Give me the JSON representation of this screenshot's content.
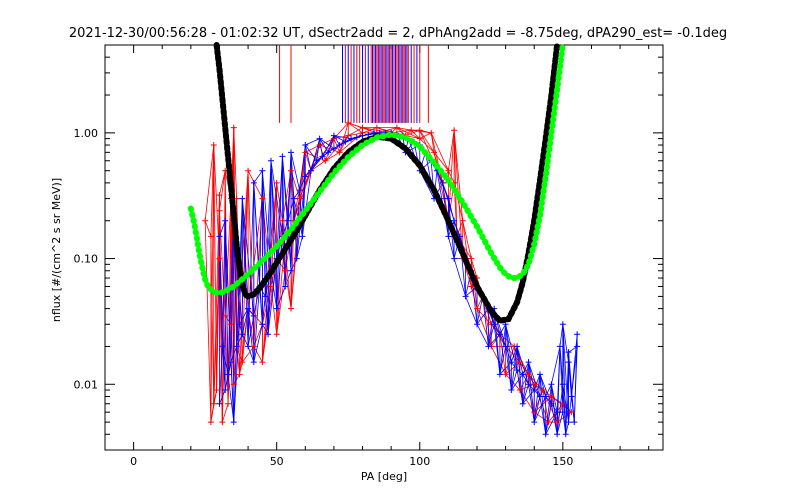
{
  "chart_data": {
    "type": "scatter",
    "title": "2021-12-30/00:56:28 - 01:02:32 UT, dSectr2add = 2, dPhAng2add = -8.75deg, dPA290_est=  -0.1deg",
    "xlabel": "PA [deg]",
    "ylabel": "nflux [#/(cm^2 s sr MeV)]",
    "xlim": [
      -10,
      185
    ],
    "ylim": [
      0.003,
      5.0
    ],
    "yscale": "log",
    "xticks": [
      0,
      50,
      100,
      150
    ],
    "yticks": [
      {
        "value": 0.01,
        "label": "0.01"
      },
      {
        "value": 0.1,
        "label": "0.10"
      },
      {
        "value": 1.0,
        "label": "1.00"
      }
    ],
    "grid": false,
    "colors": {
      "red": "#ff0000",
      "blue": "#0000ff",
      "black": "#000000",
      "green": "#00ff00"
    },
    "series": [
      {
        "color": "black",
        "style": "thick dashed",
        "x": [
          29,
          30,
          31,
          32,
          33,
          34,
          35,
          36,
          37,
          38,
          39,
          40,
          42,
          44,
          46,
          48,
          50,
          55,
          60,
          65,
          70,
          75,
          80,
          85,
          90,
          95,
          100,
          105,
          110,
          115,
          120,
          125,
          128,
          131,
          134,
          136,
          138,
          140,
          142,
          144,
          146,
          148
        ],
        "y": [
          5.0,
          3.2,
          1.9,
          1.1,
          0.65,
          0.38,
          0.22,
          0.13,
          0.085,
          0.062,
          0.052,
          0.05,
          0.052,
          0.058,
          0.067,
          0.078,
          0.093,
          0.14,
          0.22,
          0.35,
          0.52,
          0.7,
          0.85,
          0.93,
          0.9,
          0.75,
          0.55,
          0.35,
          0.2,
          0.11,
          0.06,
          0.038,
          0.032,
          0.033,
          0.045,
          0.065,
          0.11,
          0.2,
          0.42,
          0.9,
          2.0,
          5.0
        ]
      },
      {
        "color": "green",
        "style": "thick dotted",
        "x": [
          20,
          21,
          22,
          23,
          24,
          25,
          26,
          28,
          30,
          32,
          35,
          40,
          45,
          50,
          55,
          60,
          65,
          70,
          75,
          80,
          85,
          90,
          95,
          100,
          105,
          110,
          115,
          120,
          125,
          128,
          130,
          132,
          134,
          136,
          138,
          140,
          142,
          144,
          146,
          148,
          150
        ],
        "y": [
          0.25,
          0.2,
          0.15,
          0.11,
          0.085,
          0.068,
          0.06,
          0.054,
          0.053,
          0.055,
          0.06,
          0.075,
          0.096,
          0.125,
          0.17,
          0.24,
          0.34,
          0.48,
          0.64,
          0.8,
          0.92,
          0.97,
          0.92,
          0.78,
          0.58,
          0.42,
          0.28,
          0.18,
          0.11,
          0.085,
          0.075,
          0.07,
          0.07,
          0.075,
          0.09,
          0.13,
          0.22,
          0.45,
          1.0,
          2.2,
          5.0
        ]
      }
    ],
    "vertical_markers": {
      "red_x": [
        51,
        55,
        74,
        76,
        78,
        79,
        81,
        83,
        84,
        85,
        86,
        87,
        88,
        89,
        90,
        91,
        92,
        93,
        94,
        95,
        96,
        98,
        100,
        103
      ],
      "blue_x": [
        73,
        75,
        77,
        80,
        82,
        83.5,
        84.5,
        85.5,
        86.5,
        87.5,
        88.5,
        89.5,
        90.5,
        91.5,
        92.5,
        93.5,
        94.5,
        95.5,
        97,
        99
      ],
      "y_range": [
        1.2,
        5.0
      ]
    },
    "crosses": {
      "red": [
        [
          30,
          0.1
        ],
        [
          33,
          0.007
        ],
        [
          27,
          0.15
        ],
        [
          34,
          0.3
        ],
        [
          36,
          0.3
        ],
        [
          30,
          0.32
        ],
        [
          35,
          1.1
        ],
        [
          32,
          0.5
        ],
        [
          28,
          0.8
        ],
        [
          30,
          0.24
        ],
        [
          32,
          0.035
        ],
        [
          31,
          0.005
        ],
        [
          29,
          0.009
        ],
        [
          28,
          0.007
        ],
        [
          27,
          0.005
        ],
        [
          25,
          0.2
        ],
        [
          40,
          0.5
        ],
        [
          45,
          0.3
        ],
        [
          50,
          0.4
        ],
        [
          52,
          0.2
        ],
        [
          55,
          0.5
        ],
        [
          60,
          0.7
        ],
        [
          65,
          0.8
        ],
        [
          70,
          0.9
        ],
        [
          75,
          0.95
        ],
        [
          80,
          1.0
        ],
        [
          85,
          1.0
        ],
        [
          90,
          1.0
        ],
        [
          95,
          0.95
        ],
        [
          100,
          0.9
        ],
        [
          105,
          0.7
        ],
        [
          110,
          0.5
        ],
        [
          112,
          0.4
        ],
        [
          115,
          0.2
        ],
        [
          118,
          0.1
        ],
        [
          120,
          0.07
        ],
        [
          122,
          0.05
        ],
        [
          125,
          0.03
        ],
        [
          128,
          0.025
        ],
        [
          130,
          0.02
        ],
        [
          133,
          0.02
        ],
        [
          135,
          0.015
        ],
        [
          138,
          0.012
        ],
        [
          140,
          0.01
        ],
        [
          143,
          0.009
        ],
        [
          146,
          0.008
        ],
        [
          150,
          0.007
        ],
        [
          153,
          0.006
        ],
        [
          148,
          0.005
        ],
        [
          35,
          0.01
        ],
        [
          37,
          0.012
        ],
        [
          38,
          0.015
        ],
        [
          42,
          0.02
        ],
        [
          45,
          0.03
        ],
        [
          48,
          0.06
        ],
        [
          50,
          0.1
        ],
        [
          53,
          0.08
        ],
        [
          56,
          0.2
        ],
        [
          58,
          0.3
        ],
        [
          62,
          0.5
        ],
        [
          67,
          0.6
        ],
        [
          72,
          0.7
        ],
        [
          40,
          0.04
        ],
        [
          36,
          0.02
        ],
        [
          34,
          0.03
        ],
        [
          45,
          0.015
        ],
        [
          50,
          0.025
        ],
        [
          55,
          0.04
        ],
        [
          115,
          0.1
        ],
        [
          118,
          0.06
        ],
        [
          120,
          0.04
        ],
        [
          125,
          0.02
        ],
        [
          130,
          0.012
        ],
        [
          135,
          0.009
        ],
        [
          140,
          0.006
        ],
        [
          145,
          0.005
        ],
        [
          110,
          0.2
        ],
        [
          113,
          0.15
        ],
        [
          108,
          0.4
        ],
        [
          75,
          1.2
        ],
        [
          80,
          1.1
        ],
        [
          85,
          1.1
        ],
        [
          92,
          1.1
        ],
        [
          97,
          1.05
        ],
        [
          100,
          1.05
        ],
        [
          112,
          1.05
        ],
        [
          104,
          1.0
        ]
      ],
      "blue": [
        [
          30,
          0.007
        ],
        [
          31,
          0.02
        ],
        [
          32,
          0.009
        ],
        [
          33,
          0.012
        ],
        [
          34,
          0.015
        ],
        [
          35,
          0.005
        ],
        [
          36,
          0.02
        ],
        [
          37,
          0.03
        ],
        [
          38,
          0.025
        ],
        [
          40,
          0.04
        ],
        [
          42,
          0.035
        ],
        [
          44,
          0.06
        ],
        [
          46,
          0.05
        ],
        [
          48,
          0.08
        ],
        [
          50,
          0.1
        ],
        [
          52,
          0.15
        ],
        [
          54,
          0.2
        ],
        [
          56,
          0.3
        ],
        [
          58,
          0.35
        ],
        [
          60,
          0.45
        ],
        [
          62,
          0.5
        ],
        [
          64,
          0.6
        ],
        [
          66,
          0.65
        ],
        [
          68,
          0.7
        ],
        [
          70,
          0.75
        ],
        [
          72,
          0.8
        ],
        [
          74,
          0.85
        ],
        [
          76,
          0.9
        ],
        [
          78,
          0.92
        ],
        [
          80,
          0.95
        ],
        [
          82,
          0.97
        ],
        [
          84,
          1.0
        ],
        [
          86,
          1.0
        ],
        [
          88,
          1.0
        ],
        [
          90,
          1.0
        ],
        [
          92,
          0.98
        ],
        [
          94,
          0.95
        ],
        [
          96,
          0.9
        ],
        [
          98,
          0.85
        ],
        [
          100,
          0.8
        ],
        [
          102,
          0.7
        ],
        [
          104,
          0.6
        ],
        [
          106,
          0.5
        ],
        [
          108,
          0.4
        ],
        [
          110,
          0.3
        ],
        [
          112,
          0.2
        ],
        [
          114,
          0.15
        ],
        [
          116,
          0.1
        ],
        [
          118,
          0.08
        ],
        [
          120,
          0.06
        ],
        [
          122,
          0.05
        ],
        [
          124,
          0.04
        ],
        [
          126,
          0.03
        ],
        [
          128,
          0.025
        ],
        [
          130,
          0.02
        ],
        [
          132,
          0.015
        ],
        [
          134,
          0.013
        ],
        [
          136,
          0.012
        ],
        [
          138,
          0.01
        ],
        [
          140,
          0.009
        ],
        [
          142,
          0.008
        ],
        [
          144,
          0.008
        ],
        [
          146,
          0.007
        ],
        [
          148,
          0.006
        ],
        [
          150,
          0.006
        ],
        [
          152,
          0.005
        ],
        [
          154,
          0.005
        ],
        [
          150,
          0.01
        ],
        [
          152,
          0.015
        ],
        [
          155,
          0.02
        ],
        [
          153,
          0.008
        ],
        [
          151,
          0.004
        ],
        [
          40,
          0.02
        ],
        [
          42,
          0.015
        ],
        [
          45,
          0.03
        ],
        [
          47,
          0.025
        ],
        [
          50,
          0.04
        ],
        [
          53,
          0.06
        ],
        [
          55,
          0.08
        ],
        [
          57,
          0.1
        ],
        [
          59,
          0.15
        ],
        [
          30,
          0.15
        ],
        [
          32,
          0.2
        ],
        [
          35,
          0.25
        ],
        [
          38,
          0.3
        ],
        [
          42,
          0.4
        ],
        [
          45,
          0.5
        ],
        [
          48,
          0.6
        ],
        [
          52,
          0.65
        ],
        [
          55,
          0.7
        ],
        [
          60,
          0.8
        ],
        [
          65,
          0.9
        ],
        [
          70,
          0.95
        ],
        [
          112,
          0.1
        ],
        [
          116,
          0.05
        ],
        [
          120,
          0.03
        ],
        [
          124,
          0.02
        ],
        [
          128,
          0.012
        ],
        [
          132,
          0.009
        ],
        [
          136,
          0.007
        ],
        [
          140,
          0.005
        ],
        [
          144,
          0.004
        ],
        [
          148,
          0.004
        ],
        [
          110,
          0.15
        ],
        [
          105,
          0.3
        ],
        [
          100,
          0.5
        ],
        [
          95,
          0.7
        ],
        [
          126,
          0.04
        ],
        [
          130,
          0.03
        ],
        [
          134,
          0.02
        ],
        [
          138,
          0.015
        ],
        [
          142,
          0.012
        ],
        [
          146,
          0.01
        ],
        [
          150,
          0.03
        ],
        [
          155,
          0.025
        ],
        [
          152,
          0.018
        ],
        [
          149,
          0.02
        ]
      ]
    }
  }
}
